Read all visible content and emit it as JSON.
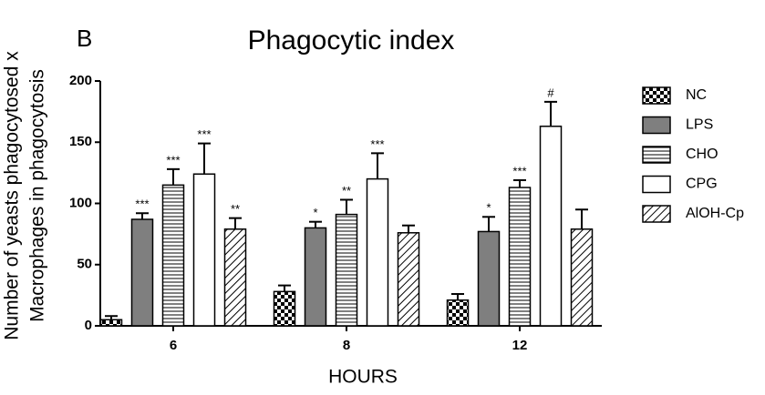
{
  "chart_data": {
    "type": "bar",
    "panel_label": "B",
    "title": "Phagocytic index",
    "ylabel": [
      "Number of yeasts phagocytosed x",
      "Macrophages in phagocytosis"
    ],
    "xlabel": "HOURS",
    "categories": [
      "6",
      "8",
      "12"
    ],
    "ylim": [
      0,
      200
    ],
    "yticks": [
      0,
      50,
      100,
      150,
      200
    ],
    "series": [
      {
        "name": "NC",
        "color": "#000000",
        "pattern": "checker",
        "values": [
          5,
          28,
          21
        ],
        "errors": [
          3,
          5,
          5
        ],
        "annotations": [
          null,
          null,
          null
        ]
      },
      {
        "name": "LPS",
        "color": "#7f7f7f",
        "pattern": "solid",
        "values": [
          87,
          80,
          77
        ],
        "errors": [
          5,
          5,
          12
        ],
        "annotations": [
          "***",
          "*",
          "*"
        ]
      },
      {
        "name": "CHO",
        "color": "#000000",
        "pattern": "hlines",
        "values": [
          115,
          91,
          113
        ],
        "errors": [
          13,
          12,
          6
        ],
        "annotations": [
          "***",
          "**",
          "***"
        ]
      },
      {
        "name": "CPG",
        "color": "#ffffff",
        "pattern": "none",
        "values": [
          124,
          120,
          163
        ],
        "errors": [
          25,
          21,
          20
        ],
        "annotations": [
          "***",
          "***",
          "#"
        ]
      },
      {
        "name": "AlOH-Cp",
        "color": "#000000",
        "pattern": "diag",
        "values": [
          79,
          76,
          79
        ],
        "errors": [
          9,
          6,
          16
        ],
        "annotations": [
          "**",
          null,
          null
        ]
      }
    ]
  }
}
